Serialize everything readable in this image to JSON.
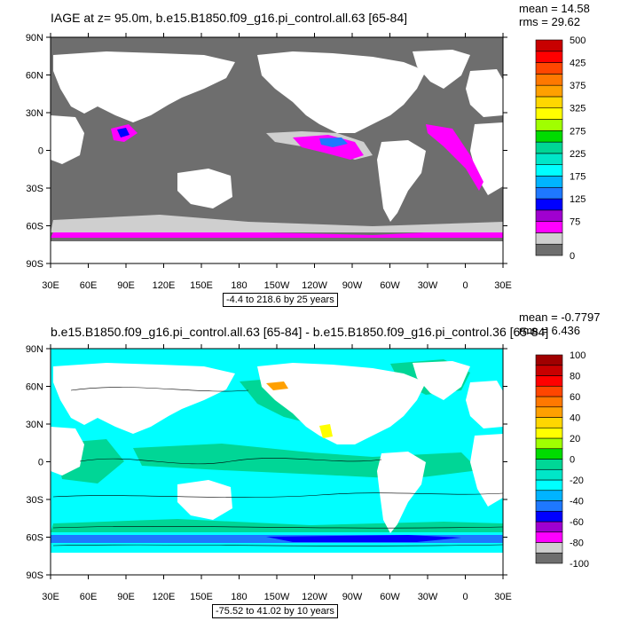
{
  "panels": [
    {
      "title": "IAGE at z=  95.0m, b.e15.B1850.f09_g16.pi_control.all.63 [65-84]",
      "stats": {
        "mean": "mean = 14.58",
        "rms": "rms = 29.62"
      },
      "range_label": "-4.4 to 218.6 by 25 years",
      "colorbar": {
        "labels": [
          "0",
          "75",
          "125",
          "175",
          "225",
          "275",
          "325",
          "375",
          "425",
          "500"
        ],
        "colors": [
          "#6e6e6e",
          "#cfcfcf",
          "#ff00ff",
          "#a000d0",
          "#0000ff",
          "#1e78ff",
          "#00b4ff",
          "#00ffff",
          "#00e6c8",
          "#00d696",
          "#00dc00",
          "#a0ff00",
          "#ffff00",
          "#ffd700",
          "#ffa000",
          "#ff7800",
          "#ff4600",
          "#ff0000",
          "#c80000"
        ],
        "ticks_at": [
          0,
          3,
          5,
          7,
          9,
          11,
          13,
          15,
          17,
          19
        ]
      }
    },
    {
      "title": "b.e15.B1850.f09_g16.pi_control.all.63 [65-84] - b.e15.B1850.f09_g16.pi_control.36 [65-84]",
      "stats": {
        "mean": "mean = -0.7797",
        "rms": "rms = 6.436"
      },
      "range_label": "-75.52 to 41.02 by 10 years",
      "colorbar": {
        "labels": [
          "-100",
          "-80",
          "-60",
          "-40",
          "-20",
          "0",
          "20",
          "40",
          "60",
          "80",
          "100"
        ],
        "colors": [
          "#6e6e6e",
          "#cfcfcf",
          "#ff00ff",
          "#a000d0",
          "#0000ff",
          "#1e78ff",
          "#00b4ff",
          "#00ffff",
          "#00e6c8",
          "#00d696",
          "#00dc00",
          "#a0ff00",
          "#ffff00",
          "#ffd700",
          "#ffa000",
          "#ff7800",
          "#ff4600",
          "#ff0000",
          "#c80000",
          "#a00000"
        ],
        "ticks_at": [
          0,
          2,
          4,
          6,
          8,
          10,
          12,
          14,
          16,
          18,
          20
        ]
      }
    }
  ],
  "lat_labels": [
    "90N",
    "60N",
    "30N",
    "0",
    "30S",
    "60S",
    "90S"
  ],
  "lon_labels": [
    "30E",
    "60E",
    "90E",
    "120E",
    "150E",
    "180",
    "150W",
    "120W",
    "90W",
    "60W",
    "30W",
    "0",
    "30E"
  ],
  "colors": {
    "ocean_top": "#6e6e6e",
    "land": "#ffffff",
    "ocean_bottom": "#00ffff",
    "ocean_bottom_green": "#00d696"
  }
}
